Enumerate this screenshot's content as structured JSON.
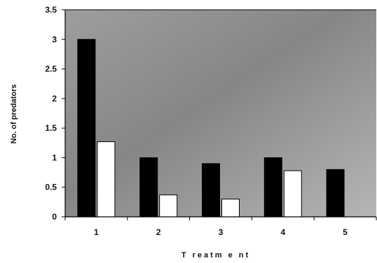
{
  "chart_data": {
    "type": "bar",
    "title": "",
    "xlabel": "T reatm e nt",
    "ylabel": "No. of predators",
    "categories": [
      "1",
      "2",
      "3",
      "4",
      "5"
    ],
    "series": [
      {
        "values": [
          3.0,
          1.0,
          0.9,
          1.0,
          0.8
        ],
        "color": "#000000"
      },
      {
        "values": [
          1.27,
          0.37,
          0.3,
          0.78,
          null
        ],
        "color": "#ffffff"
      }
    ],
    "ylim": [
      0,
      3.5
    ],
    "yticks": [
      "0",
      "0.5",
      "1",
      "1.5",
      "2",
      "2.5",
      "3",
      "3.5"
    ],
    "grid": false,
    "legend": "none",
    "plot_background": "#8f8f8f"
  }
}
